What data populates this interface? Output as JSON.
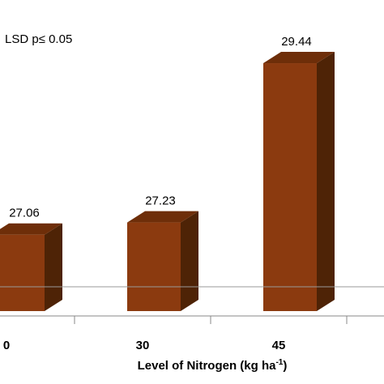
{
  "chart_data": {
    "type": "bar",
    "categories": [
      "0",
      "30",
      "45"
    ],
    "values": [
      27.06,
      27.23,
      29.44
    ],
    "data_labels": [
      "27.06",
      "27.23",
      "29.44"
    ],
    "xlabel_main": "Level of Nitrogen (kg ha",
    "xlabel_sup": "-1",
    "xlabel_close": ")",
    "annotation": "LSD p≤ 0.05",
    "ylim": [
      26.0,
      29.8
    ],
    "grid": false,
    "colors": {
      "bar_front": "#8B3A0F",
      "bar_top": "#6E2E09",
      "bar_side": "#4E2306",
      "baseline": "#999999"
    }
  }
}
